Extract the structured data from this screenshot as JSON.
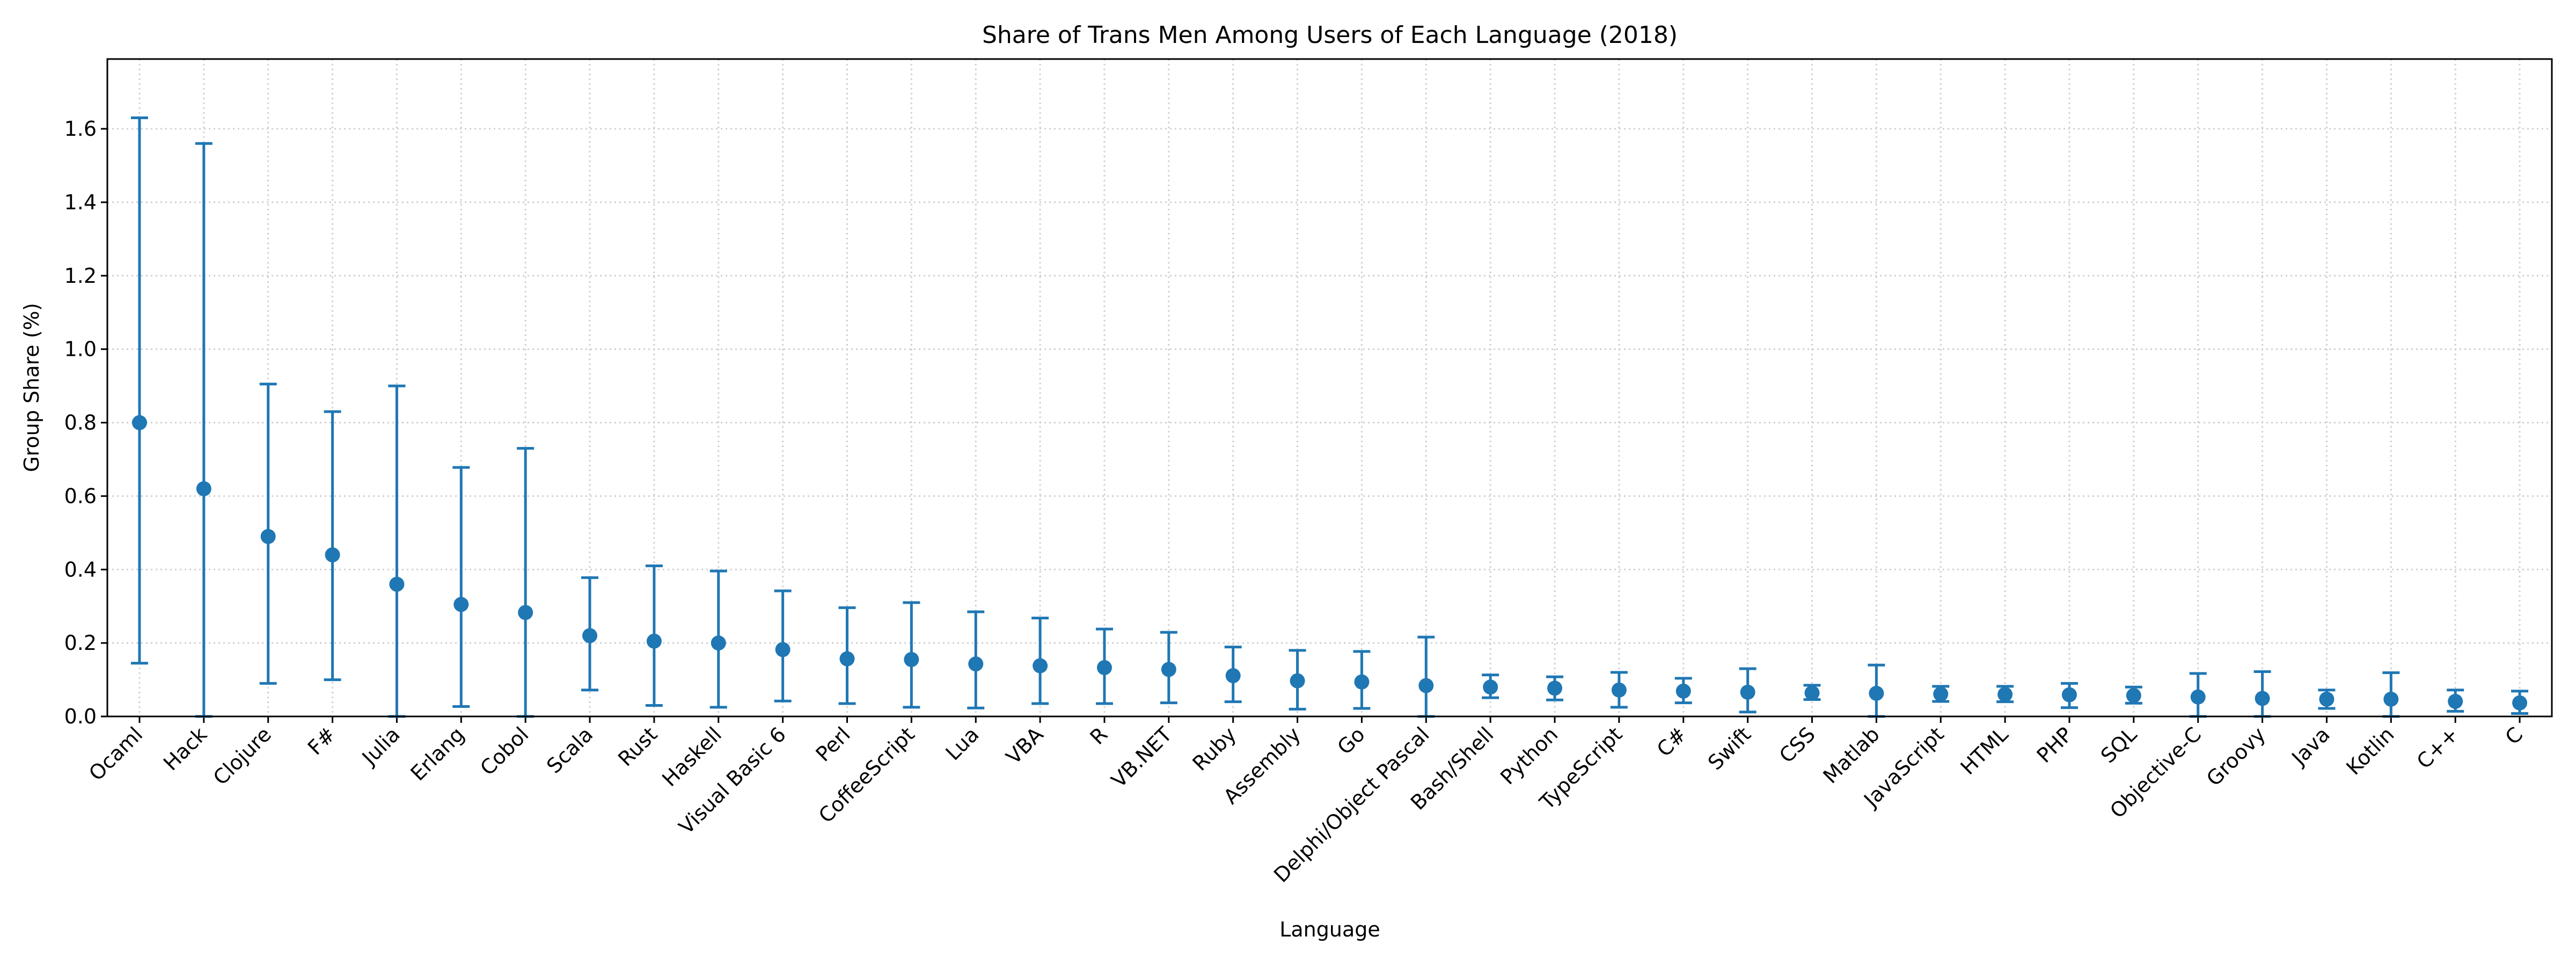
{
  "chart_data": {
    "type": "scatter",
    "title": "Share of Trans Men Among Users of Each Language (2018)",
    "xlabel": "Language",
    "ylabel": "Group Share (%)",
    "ylim": [
      0,
      1.79
    ],
    "yticks": [
      "0.0",
      "0.2",
      "0.4",
      "0.6",
      "0.8",
      "1.0",
      "1.2",
      "1.4",
      "1.6"
    ],
    "grid": true,
    "color": "#1f77b4",
    "categories": [
      "Ocaml",
      "Hack",
      "Clojure",
      "F#",
      "Julia",
      "Erlang",
      "Cobol",
      "Scala",
      "Rust",
      "Haskell",
      "Visual Basic 6",
      "Perl",
      "CoffeeScript",
      "Lua",
      "VBA",
      "R",
      "VB.NET",
      "Ruby",
      "Assembly",
      "Go",
      "Delphi/Object Pascal",
      "Bash/Shell",
      "Python",
      "TypeScript",
      "C#",
      "Swift",
      "CSS",
      "Matlab",
      "JavaScript",
      "HTML",
      "PHP",
      "SQL",
      "Objective-C",
      "Groovy",
      "Java",
      "Kotlin",
      "C++",
      "C"
    ],
    "values": [
      0.8,
      0.62,
      0.49,
      0.44,
      0.36,
      0.305,
      0.283,
      0.22,
      0.205,
      0.2,
      0.182,
      0.157,
      0.155,
      0.143,
      0.138,
      0.133,
      0.128,
      0.111,
      0.097,
      0.094,
      0.084,
      0.08,
      0.077,
      0.072,
      0.069,
      0.066,
      0.064,
      0.063,
      0.061,
      0.06,
      0.059,
      0.057,
      0.053,
      0.049,
      0.047,
      0.047,
      0.041,
      0.037
    ],
    "lower": [
      0.145,
      0.0,
      0.09,
      0.1,
      0.0,
      0.027,
      0.0,
      0.072,
      0.03,
      0.025,
      0.042,
      0.035,
      0.025,
      0.023,
      0.035,
      0.035,
      0.037,
      0.04,
      0.02,
      0.022,
      0.0,
      0.051,
      0.045,
      0.025,
      0.037,
      0.012,
      0.046,
      0.0,
      0.041,
      0.04,
      0.024,
      0.036,
      0.0,
      0.0,
      0.022,
      0.0,
      0.014,
      0.008
    ],
    "upper": [
      1.63,
      1.56,
      0.905,
      0.83,
      0.9,
      0.678,
      0.73,
      0.378,
      0.41,
      0.396,
      0.342,
      0.296,
      0.31,
      0.285,
      0.268,
      0.238,
      0.229,
      0.189,
      0.18,
      0.177,
      0.216,
      0.113,
      0.108,
      0.12,
      0.104,
      0.13,
      0.085,
      0.14,
      0.082,
      0.082,
      0.09,
      0.08,
      0.117,
      0.122,
      0.072,
      0.119,
      0.072,
      0.069
    ]
  }
}
